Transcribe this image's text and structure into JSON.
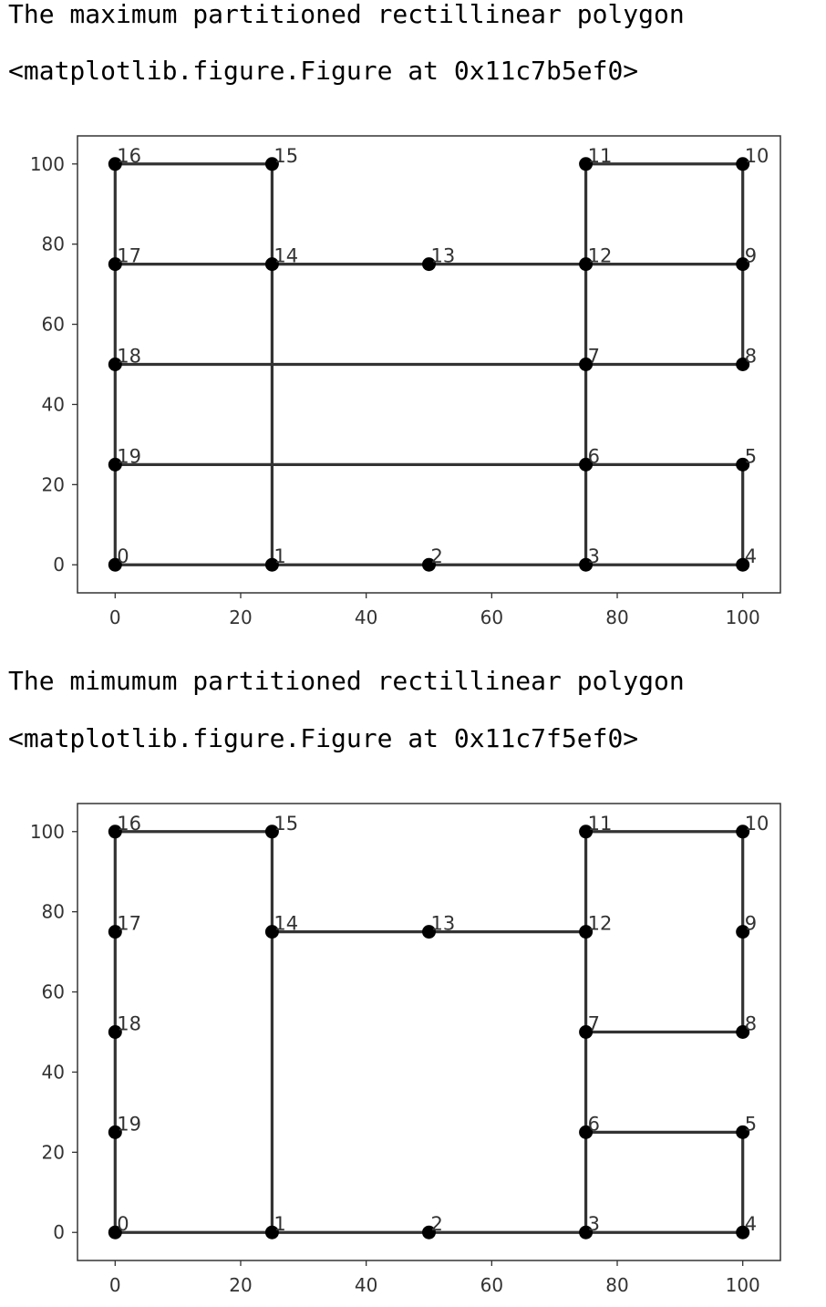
{
  "outputs": [
    {
      "title": "The maximum partitioned rectillinear polygon",
      "repr": "<matplotlib.figure.Figure at 0x11c7b5ef0>"
    },
    {
      "title": "The mimumum partitioned rectillinear polygon",
      "repr": "<matplotlib.figure.Figure at 0x11c7f5ef0>"
    }
  ],
  "chart_data": [
    {
      "type": "line",
      "title": "",
      "xlabel": "",
      "ylabel": "",
      "xlim": [
        -6,
        106
      ],
      "ylim": [
        -7,
        107
      ],
      "xticks": [
        0,
        20,
        40,
        60,
        80,
        100
      ],
      "yticks": [
        0,
        20,
        40,
        60,
        80,
        100
      ],
      "grid": false,
      "line_color": "#333333",
      "marker_color": "#000000",
      "points": [
        {
          "label": "0",
          "x": 0,
          "y": 0
        },
        {
          "label": "1",
          "x": 25,
          "y": 0
        },
        {
          "label": "2",
          "x": 50,
          "y": 0
        },
        {
          "label": "3",
          "x": 75,
          "y": 0
        },
        {
          "label": "4",
          "x": 100,
          "y": 0
        },
        {
          "label": "5",
          "x": 100,
          "y": 25
        },
        {
          "label": "6",
          "x": 75,
          "y": 25
        },
        {
          "label": "7",
          "x": 75,
          "y": 50
        },
        {
          "label": "8",
          "x": 100,
          "y": 50
        },
        {
          "label": "9",
          "x": 100,
          "y": 75
        },
        {
          "label": "10",
          "x": 100,
          "y": 100
        },
        {
          "label": "11",
          "x": 75,
          "y": 100
        },
        {
          "label": "12",
          "x": 75,
          "y": 75
        },
        {
          "label": "13",
          "x": 50,
          "y": 75
        },
        {
          "label": "14",
          "x": 25,
          "y": 75
        },
        {
          "label": "15",
          "x": 25,
          "y": 100
        },
        {
          "label": "16",
          "x": 0,
          "y": 100
        },
        {
          "label": "17",
          "x": 0,
          "y": 75
        },
        {
          "label": "18",
          "x": 0,
          "y": 50
        },
        {
          "label": "19",
          "x": 0,
          "y": 25
        }
      ],
      "segments": [
        [
          [
            0,
            0
          ],
          [
            100,
            0
          ]
        ],
        [
          [
            0,
            0
          ],
          [
            0,
            100
          ]
        ],
        [
          [
            0,
            100
          ],
          [
            25,
            100
          ]
        ],
        [
          [
            75,
            100
          ],
          [
            100,
            100
          ]
        ],
        [
          [
            100,
            0
          ],
          [
            100,
            25
          ]
        ],
        [
          [
            100,
            50
          ],
          [
            100,
            100
          ]
        ],
        [
          [
            25,
            0
          ],
          [
            25,
            100
          ]
        ],
        [
          [
            75,
            0
          ],
          [
            75,
            100
          ]
        ],
        [
          [
            0,
            75
          ],
          [
            100,
            75
          ]
        ],
        [
          [
            0,
            50
          ],
          [
            100,
            50
          ]
        ],
        [
          [
            0,
            25
          ],
          [
            100,
            25
          ]
        ]
      ]
    },
    {
      "type": "line",
      "title": "",
      "xlabel": "",
      "ylabel": "",
      "xlim": [
        -6,
        106
      ],
      "ylim": [
        -7,
        107
      ],
      "xticks": [
        0,
        20,
        40,
        60,
        80,
        100
      ],
      "yticks": [
        0,
        20,
        40,
        60,
        80,
        100
      ],
      "grid": false,
      "line_color": "#333333",
      "marker_color": "#000000",
      "points": [
        {
          "label": "0",
          "x": 0,
          "y": 0
        },
        {
          "label": "1",
          "x": 25,
          "y": 0
        },
        {
          "label": "2",
          "x": 50,
          "y": 0
        },
        {
          "label": "3",
          "x": 75,
          "y": 0
        },
        {
          "label": "4",
          "x": 100,
          "y": 0
        },
        {
          "label": "5",
          "x": 100,
          "y": 25
        },
        {
          "label": "6",
          "x": 75,
          "y": 25
        },
        {
          "label": "7",
          "x": 75,
          "y": 50
        },
        {
          "label": "8",
          "x": 100,
          "y": 50
        },
        {
          "label": "9",
          "x": 100,
          "y": 75
        },
        {
          "label": "10",
          "x": 100,
          "y": 100
        },
        {
          "label": "11",
          "x": 75,
          "y": 100
        },
        {
          "label": "12",
          "x": 75,
          "y": 75
        },
        {
          "label": "13",
          "x": 50,
          "y": 75
        },
        {
          "label": "14",
          "x": 25,
          "y": 75
        },
        {
          "label": "15",
          "x": 25,
          "y": 100
        },
        {
          "label": "16",
          "x": 0,
          "y": 100
        },
        {
          "label": "17",
          "x": 0,
          "y": 75
        },
        {
          "label": "18",
          "x": 0,
          "y": 50
        },
        {
          "label": "19",
          "x": 0,
          "y": 25
        }
      ],
      "segments": [
        [
          [
            0,
            0
          ],
          [
            100,
            0
          ]
        ],
        [
          [
            0,
            0
          ],
          [
            0,
            100
          ]
        ],
        [
          [
            0,
            100
          ],
          [
            25,
            100
          ]
        ],
        [
          [
            25,
            0
          ],
          [
            25,
            100
          ]
        ],
        [
          [
            25,
            75
          ],
          [
            75,
            75
          ]
        ],
        [
          [
            75,
            0
          ],
          [
            75,
            100
          ]
        ],
        [
          [
            75,
            100
          ],
          [
            100,
            100
          ]
        ],
        [
          [
            100,
            50
          ],
          [
            100,
            100
          ]
        ],
        [
          [
            75,
            50
          ],
          [
            100,
            50
          ]
        ],
        [
          [
            75,
            25
          ],
          [
            100,
            25
          ]
        ],
        [
          [
            100,
            0
          ],
          [
            100,
            25
          ]
        ]
      ]
    }
  ]
}
